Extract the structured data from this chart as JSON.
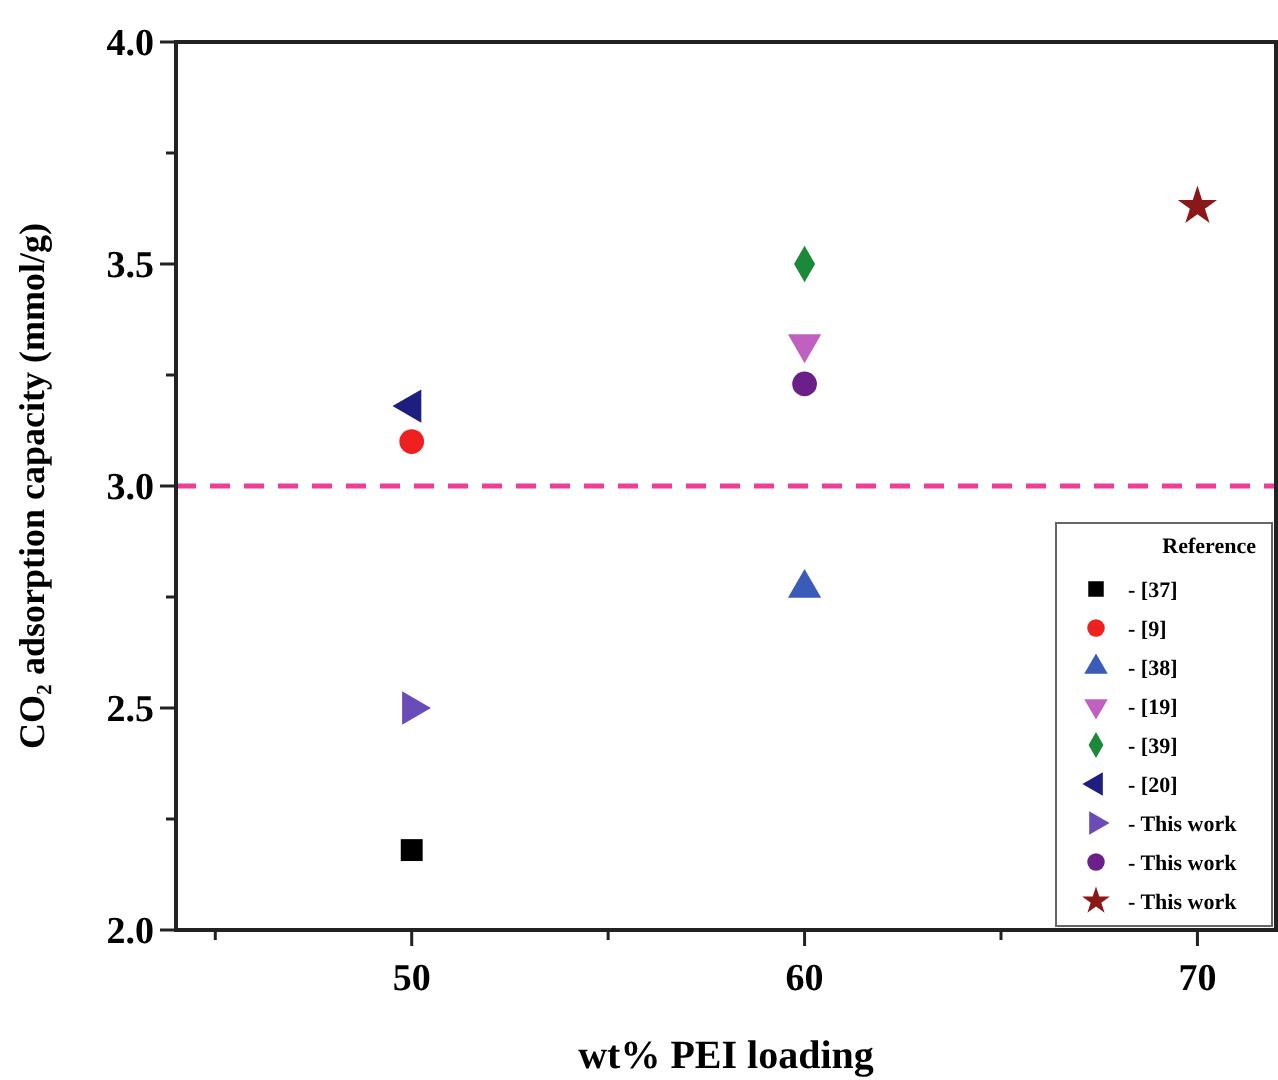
{
  "chart_data": {
    "type": "scatter",
    "xlabel": "wt% PEI loading",
    "ylabel": "CO₂ adsorption capacity (mmol/g)",
    "legend_title": "Reference",
    "legend": "bottom right",
    "grid": false,
    "xlim": [
      44,
      72
    ],
    "xticks": [
      {
        "value": 45,
        "label": null
      },
      50,
      {
        "value": 55,
        "label": null
      },
      60,
      {
        "value": 65,
        "label": null
      },
      70
    ],
    "ylim": [
      2.0,
      4.0
    ],
    "yticks": [
      {
        "value": 2.0,
        "label": "2.0"
      },
      {
        "value": 2.25,
        "label": null
      },
      2.5,
      {
        "value": 2.75,
        "label": null
      },
      {
        "value": 3.0,
        "label": "3.0"
      },
      {
        "value": 3.25,
        "label": null
      },
      3.5,
      {
        "value": 3.75,
        "label": null
      },
      {
        "value": 4.0,
        "label": "4.0"
      }
    ],
    "ref_lines": [
      {
        "axis": "y",
        "value": 3.0,
        "color": "#ee3d96",
        "line_style": "dashed"
      }
    ],
    "series": [
      {
        "name": "- [37]",
        "color": "#000000",
        "marker": "square",
        "x": [
          50
        ],
        "values": [
          2.18
        ]
      },
      {
        "name": "- [9]",
        "color": "#ee2020",
        "marker": "circle",
        "x": [
          50
        ],
        "values": [
          3.1
        ]
      },
      {
        "name": "- [38]",
        "color": "#3a5cb8",
        "marker": "triangle",
        "x": [
          60
        ],
        "values": [
          2.77
        ]
      },
      {
        "name": "- [19]",
        "color": "#c060c0",
        "marker": "triangle-down",
        "x": [
          60
        ],
        "values": [
          3.32
        ]
      },
      {
        "name": "- [39]",
        "color": "#1a8a3a",
        "marker": "diamond",
        "x": [
          60
        ],
        "values": [
          3.5
        ]
      },
      {
        "name": "- [20]",
        "color": "#1e1e80",
        "marker": "triangle-left",
        "x": [
          50
        ],
        "values": [
          3.18
        ]
      },
      {
        "name": "- This work",
        "color": "#6a4cb8",
        "marker": "triangle-right",
        "x": [
          50
        ],
        "values": [
          2.5
        ]
      },
      {
        "name": "- This work",
        "color": "#6a2088",
        "marker": "circle",
        "x": [
          60
        ],
        "values": [
          3.23
        ]
      },
      {
        "name": "- This work",
        "color": "#8a1818",
        "marker": "star",
        "x": [
          70
        ],
        "values": [
          3.63
        ]
      }
    ]
  }
}
